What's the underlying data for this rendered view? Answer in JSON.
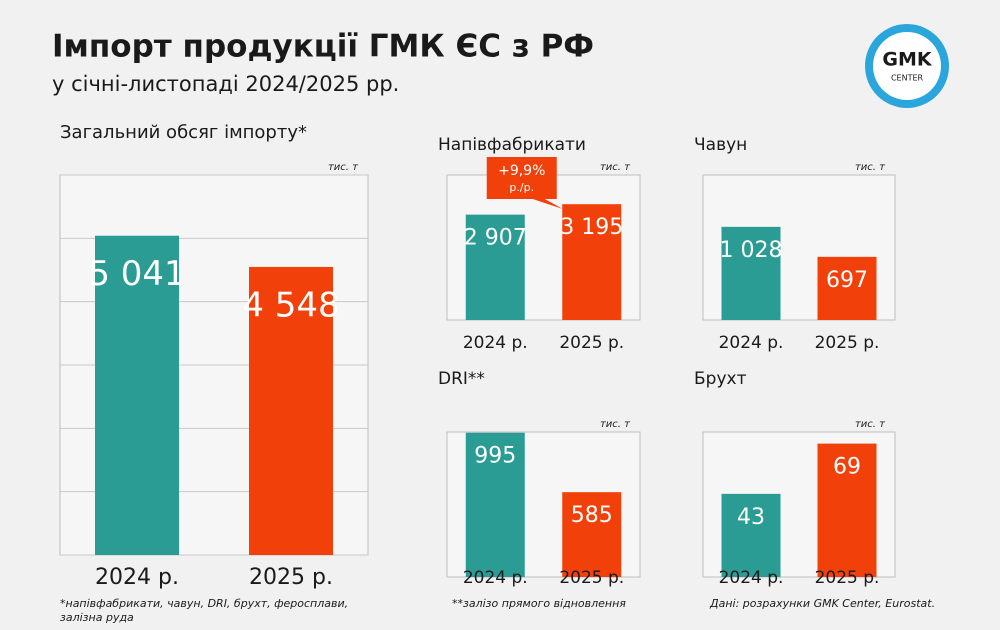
{
  "header": {
    "title": "Імпорт продукції ГМК ЄС з РФ",
    "subtitle": "у січні-листопаді 2024/2025 рр.",
    "logo_top": "GMK",
    "logo_bottom": "CENTER"
  },
  "chart_data": [
    {
      "type": "bar",
      "title": "Загальний обсяг імпорту*",
      "unit": "тис. т",
      "categories": [
        "2024 р.",
        "2025 р."
      ],
      "values": [
        5041,
        4548
      ],
      "value_labels": [
        "5 041",
        "4 548"
      ],
      "colors": [
        "#2b9c93",
        "#f2400a"
      ],
      "ylim": [
        0,
        6000
      ],
      "yticks": [
        0,
        1000,
        2000,
        3000,
        4000,
        5000,
        6000
      ],
      "grid": true
    },
    {
      "type": "bar",
      "title": "Напівфабрикати",
      "unit": "тис. т",
      "categories": [
        "2024 р.",
        "2025 р."
      ],
      "values": [
        2907,
        3195
      ],
      "value_labels": [
        "2 907",
        "3 195"
      ],
      "colors": [
        "#2b9c93",
        "#f2400a"
      ],
      "ylim": [
        0,
        4000
      ],
      "annotation": "+9,9%",
      "annotation_sub": "р./р."
    },
    {
      "type": "bar",
      "title": "Чавун",
      "unit": "тис. т",
      "categories": [
        "2024 р.",
        "2025 р."
      ],
      "values": [
        1028,
        697
      ],
      "value_labels": [
        "1 028",
        "697"
      ],
      "colors": [
        "#2b9c93",
        "#f2400a"
      ],
      "ylim": [
        0,
        1600
      ]
    },
    {
      "type": "bar",
      "title": "DRI**",
      "unit": "тис. т",
      "categories": [
        "2024 р.",
        "2025 р."
      ],
      "values": [
        995,
        585
      ],
      "colors": [
        "#2b9c93",
        "#f2400a"
      ],
      "ylim": [
        0,
        1000
      ]
    },
    {
      "type": "bar",
      "title": "Брухт",
      "unit": "тис. т",
      "categories": [
        "2024 р.",
        "2025 р."
      ],
      "values": [
        43,
        69
      ],
      "colors": [
        "#2b9c93",
        "#f2400a"
      ],
      "ylim": [
        0,
        75
      ]
    }
  ],
  "footnotes": [
    "*напівфабрикати, чавун, DRI, брухт, феросплави,",
    "залізна руда",
    "**залізо прямого відновлення",
    "Дані: розрахунки GMK Center, Eurostat."
  ]
}
